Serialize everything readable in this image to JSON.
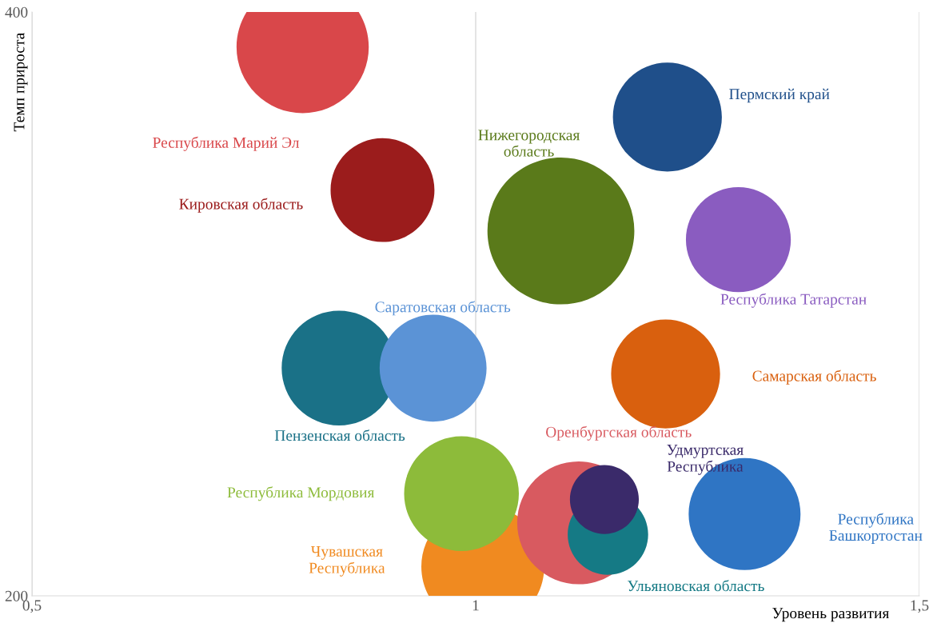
{
  "chart_data": {
    "type": "bubble",
    "xlabel": "Уровень развития",
    "ylabel": "Темп прироста",
    "xlim": [
      0.5,
      1.5
    ],
    "xticks": [
      {
        "value": 0.5,
        "label": "0,5"
      },
      1,
      {
        "value": 1.5,
        "label": "1,5"
      }
    ],
    "ylim": [
      200,
      400
    ],
    "yticks": [
      200,
      400
    ],
    "grid": "x",
    "legend": false,
    "series": [
      {
        "name": "Республика Марий Эл",
        "color": "#d9474a",
        "x": [
          0.805
        ],
        "values": [
          388
        ],
        "sizes": [
          0.81
        ]
      },
      {
        "name": "Кировская область",
        "color": "#9b1c1c",
        "x": [
          0.895
        ],
        "values": [
          339
        ],
        "sizes": [
          0.5
        ]
      },
      {
        "name": "Нижегородская\nобласть",
        "color": "#5a7a1a",
        "x": [
          1.096
        ],
        "values": [
          325
        ],
        "sizes": [
          1
        ]
      },
      {
        "name": "Пермский край",
        "color": "#1f4f8a",
        "x": [
          1.216
        ],
        "values": [
          364
        ],
        "sizes": [
          0.55
        ]
      },
      {
        "name": "Республика Татарстан",
        "color": "#8a5cc0",
        "x": [
          1.296
        ],
        "values": [
          322
        ],
        "sizes": [
          0.51
        ]
      },
      {
        "name": "Саратовская область",
        "color": "#5b93d6",
        "x": [
          0.952
        ],
        "values": [
          278
        ],
        "sizes": [
          0.53
        ]
      },
      {
        "name": "Пензенская область",
        "color": "#1a7187",
        "x": [
          0.846
        ],
        "values": [
          278
        ],
        "sizes": [
          0.61
        ]
      },
      {
        "name": "Самарская область",
        "color": "#d9600e",
        "x": [
          1.214
        ],
        "values": [
          276
        ],
        "sizes": [
          0.55
        ]
      },
      {
        "name": "Республика Мордовия",
        "color": "#8dbb3a",
        "x": [
          0.984
        ],
        "values": [
          235
        ],
        "sizes": [
          0.61
        ]
      },
      {
        "name": "Чувашская\nРеспублика",
        "color": "#f08a20",
        "x": [
          1.008
        ],
        "values": [
          210
        ],
        "sizes": [
          0.7
        ]
      },
      {
        "name": "Удмуртская\nРеспублика",
        "color": "#3a2a6a",
        "x": [
          1.145
        ],
        "values": [
          233
        ],
        "sizes": [
          0.22
        ]
      },
      {
        "name": "Ульяновская область",
        "color": "#157a85",
        "x": [
          1.149
        ],
        "values": [
          221
        ],
        "sizes": [
          0.3
        ]
      },
      {
        "name": "Оренбургская область",
        "color": "#d85a60",
        "x": [
          1.116
        ],
        "values": [
          225
        ],
        "sizes": [
          0.7
        ]
      },
      {
        "name": "Республика\nБашкортостан",
        "color": "#2f75c4",
        "x": [
          1.303
        ],
        "values": [
          228
        ],
        "sizes": [
          0.58
        ]
      }
    ]
  }
}
